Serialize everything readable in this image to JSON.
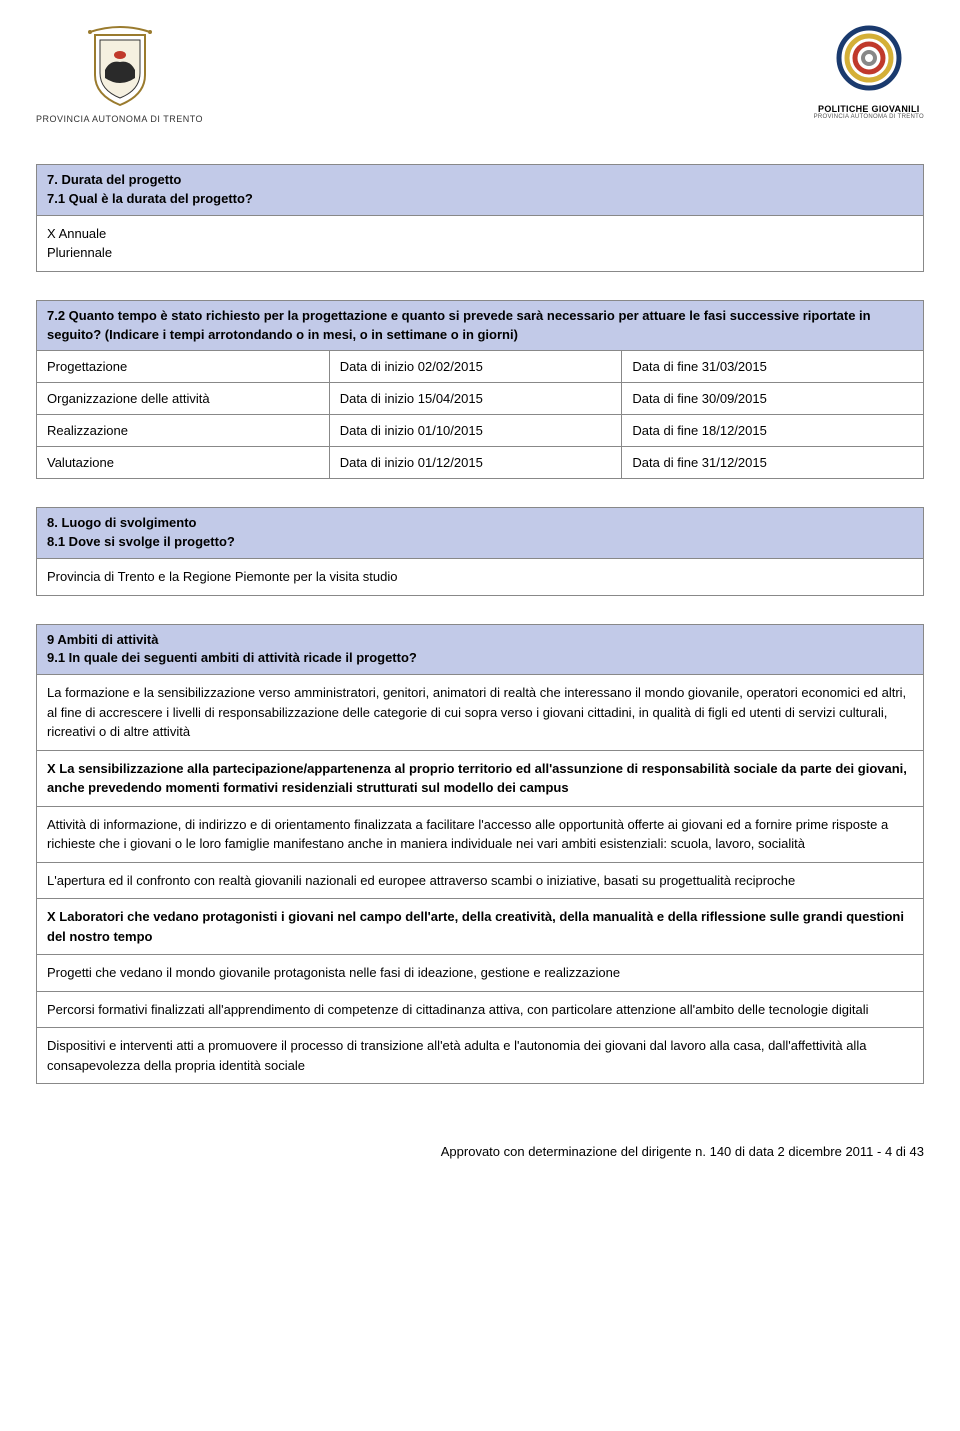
{
  "header": {
    "left_logo_text": "PROVINCIA AUTONOMA DI TRENTO",
    "right_logo_text": "POLITICHE GIOVANILI",
    "right_logo_subtext": "PROVINCIA AUTONOMA DI TRENTO"
  },
  "section7": {
    "title_line1": "7. Durata del progetto",
    "title_line2": "7.1 Qual è la durata del progetto?",
    "option1": "X Annuale",
    "option2": "Pluriennale"
  },
  "section72": {
    "title": "7.2 Quanto tempo è stato richiesto per la progettazione e quanto si prevede sarà necessario per attuare le fasi successive riportate in seguito? (Indicare i tempi arrotondando o in mesi, o in settimane o in giorni)",
    "rows": [
      {
        "label": "Progettazione",
        "inizio": "Data di inizio  02/02/2015",
        "fine": "Data di fine  31/03/2015"
      },
      {
        "label": "Organizzazione delle attività",
        "inizio": "Data di inizio  15/04/2015",
        "fine": "Data di fine  30/09/2015"
      },
      {
        "label": "Realizzazione",
        "inizio": "Data di inizio  01/10/2015",
        "fine": "Data di fine  18/12/2015"
      },
      {
        "label": "Valutazione",
        "inizio": "Data di inizio  01/12/2015",
        "fine": "Data di fine  31/12/2015"
      }
    ]
  },
  "section8": {
    "title_line1": "8. Luogo di svolgimento",
    "title_line2": "8.1 Dove si svolge il progetto?",
    "body": "Provincia di Trento e la Regione Piemonte per la visita studio"
  },
  "section9": {
    "title_line1": "9 Ambiti di attività",
    "title_line2": "9.1 In quale dei seguenti ambiti di attività ricade il progetto?",
    "rows": [
      {
        "text": "La formazione e la sensibilizzazione verso amministratori, genitori, animatori di realtà che interessano il mondo giovanile, operatori economici ed altri, al fine di accrescere i livelli di responsabilizzazione delle categorie di cui sopra verso i giovani cittadini, in qualità di figli ed utenti di servizi culturali, ricreativi o di altre attività",
        "bold": false
      },
      {
        "text": "X La sensibilizzazione alla partecipazione/appartenenza al proprio territorio ed all'assunzione di responsabilità sociale da parte dei giovani, anche prevedendo momenti formativi residenziali strutturati sul modello dei campus",
        "bold": true
      },
      {
        "text": "Attività di informazione, di indirizzo e di orientamento finalizzata a facilitare l'accesso alle opportunità offerte ai giovani ed a fornire prime risposte a richieste che i giovani o le loro famiglie manifestano anche in maniera individuale nei vari ambiti esistenziali: scuola, lavoro, socialità",
        "bold": false
      },
      {
        "text": "L'apertura ed il confronto con realtà giovanili nazionali ed europee attraverso scambi o iniziative, basati su progettualità reciproche",
        "bold": false
      },
      {
        "text": "X Laboratori che vedano protagonisti i giovani nel campo dell'arte, della creatività, della manualità e della riflessione sulle grandi questioni del nostro tempo",
        "bold": true
      },
      {
        "text": "Progetti che vedano il mondo giovanile protagonista nelle fasi di ideazione, gestione e realizzazione",
        "bold": false
      },
      {
        "text": "Percorsi formativi finalizzati all'apprendimento di competenze di cittadinanza attiva, con particolare attenzione all'ambito delle tecnologie digitali",
        "bold": false
      },
      {
        "text": "Dispositivi e interventi atti a promuovere il processo di transizione all'età adulta e l'autonomia dei giovani dal lavoro alla casa, dall'affettività alla consapevolezza della propria identità sociale",
        "bold": false
      }
    ]
  },
  "footer": "Approvato con determinazione del dirigente n. 140 di data 2 dicembre 2011 - 4 di 43",
  "colors": {
    "header_bg": "#c2cae8",
    "border": "#888888",
    "text": "#000000"
  }
}
